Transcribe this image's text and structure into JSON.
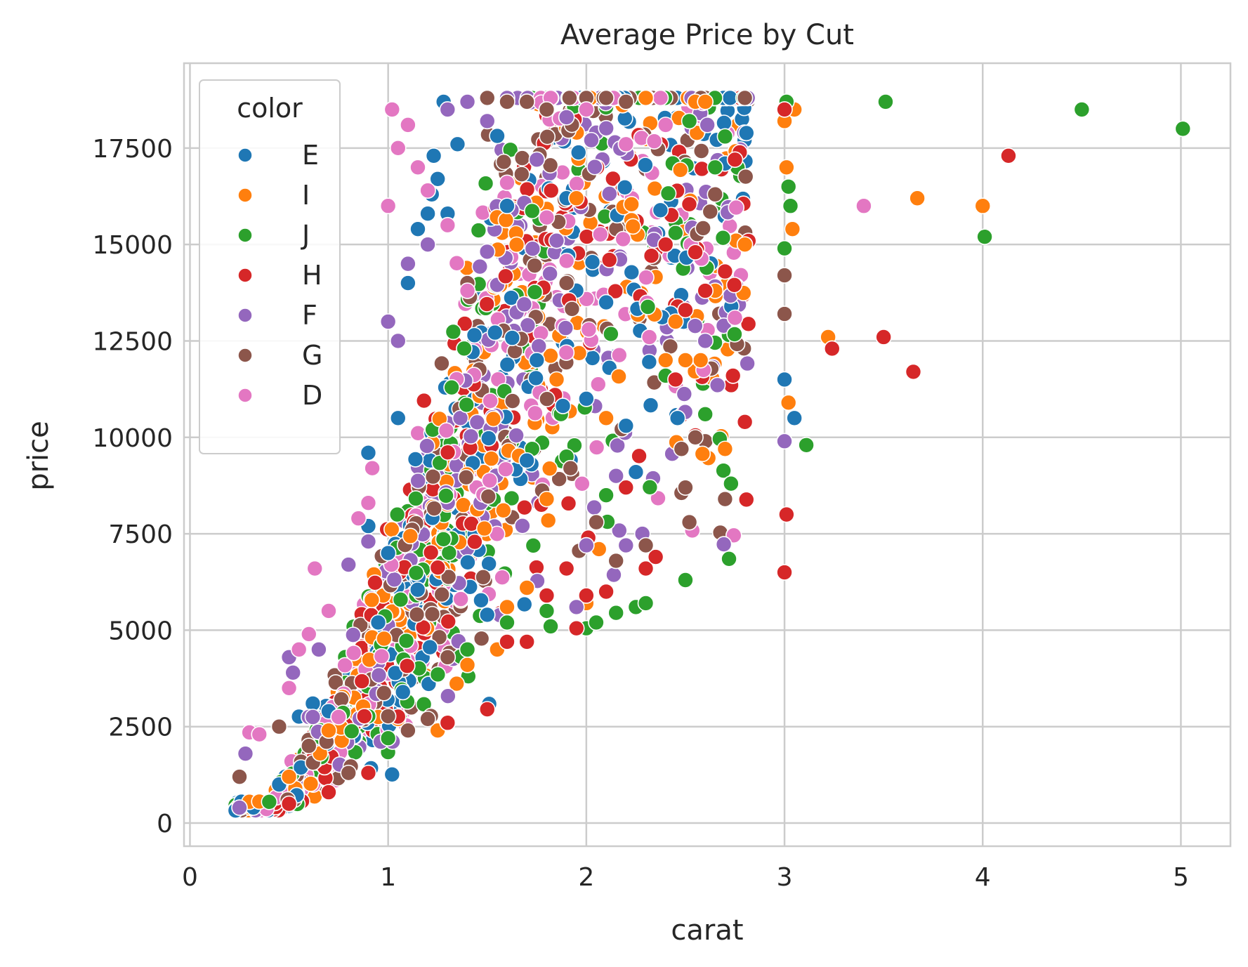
{
  "chart_data": {
    "type": "scatter",
    "title": "Average Price by Cut",
    "xlabel": "carat",
    "ylabel": "price",
    "xlim": [
      -0.03,
      5.25
    ],
    "ylim": [
      -600,
      19700
    ],
    "xticks": [
      0,
      1,
      2,
      3,
      4,
      5
    ],
    "yticks": [
      0,
      2500,
      5000,
      7500,
      10000,
      12500,
      15000,
      17500
    ],
    "grid": true,
    "legend": {
      "title": "color",
      "placement": "top-left"
    },
    "series": [
      {
        "name": "E",
        "color": "#1f77b4",
        "points": [
          [
            0.23,
            326
          ],
          [
            0.26,
            554
          ],
          [
            0.32,
            403
          ],
          [
            0.45,
            1000
          ],
          [
            0.55,
            2760
          ],
          [
            0.62,
            3100
          ],
          [
            0.7,
            2900
          ],
          [
            0.9,
            9600
          ],
          [
            0.9,
            7700
          ],
          [
            0.95,
            5200
          ],
          [
            1.0,
            7000
          ],
          [
            1.02,
            1260
          ],
          [
            1.05,
            10500
          ],
          [
            1.1,
            14000
          ],
          [
            1.15,
            15400
          ],
          [
            1.2,
            15800
          ],
          [
            1.22,
            16300
          ],
          [
            1.23,
            17300
          ],
          [
            1.25,
            16700
          ],
          [
            1.28,
            18700
          ],
          [
            1.3,
            15800
          ],
          [
            1.35,
            17600
          ],
          [
            1.5,
            5400
          ],
          [
            1.51,
            3090
          ],
          [
            1.6,
            16000
          ],
          [
            1.7,
            9400
          ],
          [
            1.75,
            12000
          ],
          [
            1.9,
            16200
          ],
          [
            2.0,
            11000
          ],
          [
            2.1,
            13500
          ],
          [
            2.2,
            10300
          ],
          [
            2.25,
            9100
          ],
          [
            2.46,
            10500
          ],
          [
            2.7,
            17100
          ],
          [
            3.0,
            11500
          ],
          [
            3.05,
            10500
          ]
        ]
      },
      {
        "name": "I",
        "color": "#ff7f0e",
        "points": [
          [
            0.3,
            552
          ],
          [
            0.35,
            558
          ],
          [
            0.5,
            1200
          ],
          [
            0.7,
            2400
          ],
          [
            0.95,
            2750
          ],
          [
            1.05,
            2700
          ],
          [
            1.25,
            2400
          ],
          [
            1.3,
            2600
          ],
          [
            1.4,
            4100
          ],
          [
            1.55,
            4500
          ],
          [
            1.6,
            5600
          ],
          [
            1.7,
            6100
          ],
          [
            1.8,
            8400
          ],
          [
            1.85,
            11500
          ],
          [
            1.95,
            16200
          ],
          [
            2.0,
            5700
          ],
          [
            2.1,
            10500
          ],
          [
            2.3,
            18800
          ],
          [
            2.4,
            12000
          ],
          [
            2.45,
            13000
          ],
          [
            2.5,
            12000
          ],
          [
            2.55,
            18700
          ],
          [
            2.6,
            18700
          ],
          [
            2.65,
            13800
          ],
          [
            2.7,
            9700
          ],
          [
            2.8,
            15000
          ],
          [
            3.0,
            18200
          ],
          [
            3.01,
            17000
          ],
          [
            3.02,
            10900
          ],
          [
            3.04,
            15400
          ],
          [
            3.05,
            18500
          ],
          [
            3.22,
            12600
          ],
          [
            3.67,
            16200
          ],
          [
            4.0,
            16000
          ]
        ]
      },
      {
        "name": "J",
        "color": "#2ca02c",
        "points": [
          [
            0.4,
            550
          ],
          [
            0.9,
            2770
          ],
          [
            1.0,
            2200
          ],
          [
            1.4,
            4500
          ],
          [
            1.6,
            5200
          ],
          [
            1.8,
            5500
          ],
          [
            1.82,
            5100
          ],
          [
            1.9,
            9500
          ],
          [
            2.0,
            5050
          ],
          [
            2.05,
            5200
          ],
          [
            2.1,
            8500
          ],
          [
            2.15,
            5450
          ],
          [
            2.2,
            18700
          ],
          [
            2.25,
            5600
          ],
          [
            2.3,
            5700
          ],
          [
            2.4,
            11600
          ],
          [
            2.45,
            15300
          ],
          [
            2.5,
            6300
          ],
          [
            2.52,
            18200
          ],
          [
            2.6,
            10600
          ],
          [
            2.65,
            17000
          ],
          [
            2.7,
            17800
          ],
          [
            2.72,
            6850
          ],
          [
            2.73,
            8800
          ],
          [
            3.0,
            14900
          ],
          [
            3.01,
            18700
          ],
          [
            3.02,
            16500
          ],
          [
            3.03,
            16000
          ],
          [
            3.11,
            9800
          ],
          [
            3.51,
            18700
          ],
          [
            4.01,
            15200
          ],
          [
            4.5,
            18500
          ],
          [
            5.01,
            18000
          ]
        ]
      },
      {
        "name": "H",
        "color": "#d62728",
        "points": [
          [
            0.5,
            500
          ],
          [
            0.7,
            800
          ],
          [
            0.88,
            2770
          ],
          [
            0.9,
            1300
          ],
          [
            1.05,
            2760
          ],
          [
            1.3,
            2600
          ],
          [
            1.5,
            2950
          ],
          [
            1.6,
            4700
          ],
          [
            1.7,
            4700
          ],
          [
            1.8,
            5900
          ],
          [
            1.9,
            6600
          ],
          [
            1.95,
            5050
          ],
          [
            2.0,
            5900
          ],
          [
            2.01,
            7400
          ],
          [
            2.1,
            6000
          ],
          [
            2.2,
            8700
          ],
          [
            2.3,
            6600
          ],
          [
            2.35,
            6900
          ],
          [
            2.4,
            15000
          ],
          [
            2.45,
            11500
          ],
          [
            2.5,
            13300
          ],
          [
            2.55,
            14800
          ],
          [
            2.6,
            13800
          ],
          [
            2.7,
            14300
          ],
          [
            2.74,
            11600
          ],
          [
            2.75,
            17200
          ],
          [
            2.8,
            10400
          ],
          [
            3.0,
            18500
          ],
          [
            3.01,
            8000
          ],
          [
            3.0,
            6500
          ],
          [
            3.24,
            12300
          ],
          [
            3.5,
            12600
          ],
          [
            3.65,
            11700
          ],
          [
            4.13,
            17300
          ]
        ]
      },
      {
        "name": "F",
        "color": "#9467bd",
        "points": [
          [
            0.25,
            400
          ],
          [
            0.28,
            1800
          ],
          [
            0.5,
            4300
          ],
          [
            0.52,
            3900
          ],
          [
            0.6,
            2750
          ],
          [
            0.62,
            2750
          ],
          [
            0.65,
            4500
          ],
          [
            0.75,
            2750
          ],
          [
            0.8,
            6700
          ],
          [
            0.9,
            7300
          ],
          [
            1.0,
            13000
          ],
          [
            1.05,
            12500
          ],
          [
            1.1,
            14500
          ],
          [
            1.2,
            15000
          ],
          [
            1.3,
            18500
          ],
          [
            1.4,
            18700
          ],
          [
            1.5,
            18200
          ],
          [
            1.6,
            18800
          ],
          [
            1.7,
            18700
          ],
          [
            1.75,
            17200
          ],
          [
            1.85,
            15100
          ],
          [
            1.9,
            18300
          ],
          [
            1.95,
            5600
          ],
          [
            2.0,
            7200
          ],
          [
            2.15,
            9000
          ],
          [
            2.2,
            7200
          ],
          [
            2.6,
            12500
          ],
          [
            3.0,
            9900
          ]
        ]
      },
      {
        "name": "G",
        "color": "#8c564b",
        "points": [
          [
            0.25,
            1200
          ],
          [
            0.45,
            2500
          ],
          [
            0.6,
            2000
          ],
          [
            0.8,
            1300
          ],
          [
            1.0,
            2770
          ],
          [
            1.1,
            2400
          ],
          [
            1.2,
            2700
          ],
          [
            1.3,
            4300
          ],
          [
            1.4,
            14000
          ],
          [
            1.5,
            18800
          ],
          [
            1.6,
            18700
          ],
          [
            1.7,
            18700
          ],
          [
            1.8,
            18500
          ],
          [
            1.9,
            14000
          ],
          [
            1.92,
            9200
          ],
          [
            2.0,
            18800
          ],
          [
            2.05,
            7800
          ],
          [
            2.1,
            18800
          ],
          [
            2.15,
            6800
          ],
          [
            2.2,
            18700
          ],
          [
            2.3,
            7200
          ],
          [
            2.48,
            9700
          ],
          [
            2.5,
            8700
          ],
          [
            2.52,
            7800
          ],
          [
            2.55,
            10000
          ],
          [
            2.65,
            16300
          ],
          [
            2.7,
            8400
          ],
          [
            2.8,
            18800
          ],
          [
            3.0,
            14200
          ],
          [
            3.0,
            13200
          ]
        ]
      },
      {
        "name": "D",
        "color": "#e377c2",
        "points": [
          [
            0.3,
            2350
          ],
          [
            0.35,
            2300
          ],
          [
            0.5,
            3500
          ],
          [
            0.55,
            4500
          ],
          [
            0.6,
            4900
          ],
          [
            0.63,
            6600
          ],
          [
            0.7,
            5500
          ],
          [
            0.75,
            2750
          ],
          [
            0.85,
            7900
          ],
          [
            0.9,
            8300
          ],
          [
            0.92,
            9200
          ],
          [
            1.0,
            16000
          ],
          [
            1.02,
            18500
          ],
          [
            1.05,
            17500
          ],
          [
            1.1,
            18100
          ],
          [
            1.15,
            17000
          ],
          [
            1.2,
            16400
          ],
          [
            1.3,
            15500
          ],
          [
            1.4,
            13800
          ],
          [
            1.6,
            16600
          ],
          [
            1.8,
            15700
          ],
          [
            2.0,
            18500
          ],
          [
            2.2,
            17600
          ],
          [
            2.4,
            18100
          ],
          [
            2.75,
            13100
          ],
          [
            3.4,
            16000
          ]
        ]
      }
    ]
  }
}
